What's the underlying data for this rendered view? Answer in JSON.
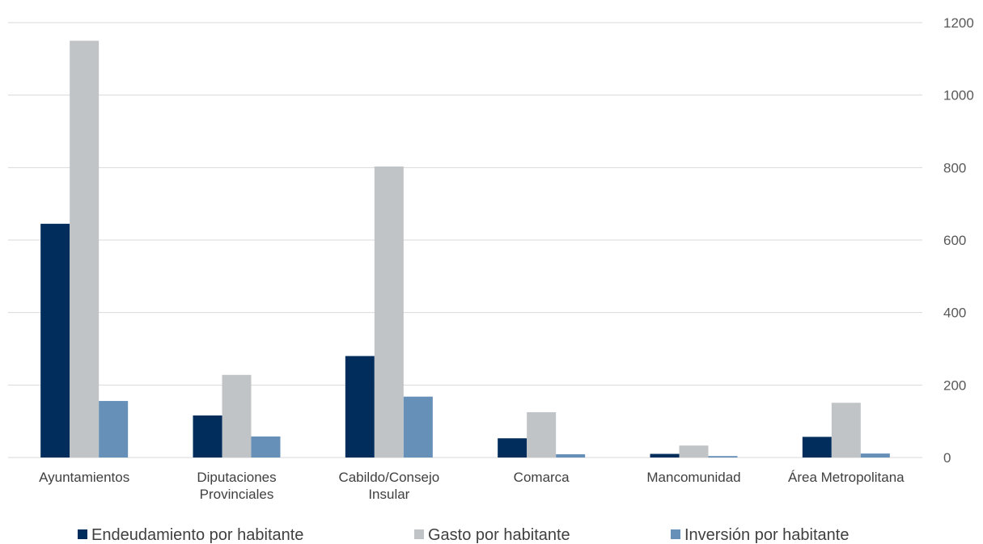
{
  "chart_data": {
    "type": "bar",
    "categories": [
      [
        "Ayuntamientos"
      ],
      [
        "Diputaciones",
        "Provinciales"
      ],
      [
        "Cabildo/Consejo",
        "Insular"
      ],
      [
        "Comarca"
      ],
      [
        "Mancomunidad"
      ],
      [
        "Área Metropolitana"
      ]
    ],
    "series": [
      {
        "name": "Endeudamiento por habitante",
        "color": "#002d5c",
        "values": [
          645,
          116,
          280,
          53,
          10,
          57
        ]
      },
      {
        "name": "Gasto por habitante",
        "color": "#c0c4c6",
        "values": [
          1150,
          228,
          803,
          125,
          33,
          151
        ]
      },
      {
        "name": "Inversión por habitante",
        "color": "#6690b8",
        "values": [
          156,
          58,
          168,
          9,
          4,
          11
        ]
      }
    ],
    "y_axis": {
      "position": "right",
      "ylim": [
        0,
        1200
      ],
      "ticks": [
        0,
        200,
        400,
        600,
        800,
        1000,
        1200
      ]
    },
    "grid": true,
    "legend": {
      "placement": "bottom"
    },
    "title": "",
    "xlabel": "",
    "ylabel": ""
  }
}
